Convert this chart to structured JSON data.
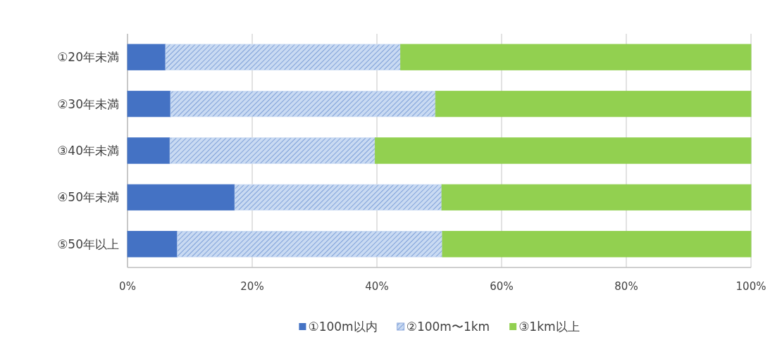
{
  "chart_data": {
    "type": "bar",
    "orientation": "horizontal",
    "stacked": true,
    "categories": [
      "①20年未満",
      "②30年未満",
      "③40年未満",
      "④50年未満",
      "⑤50年以上"
    ],
    "series": [
      {
        "name": "①100m以内",
        "color": "#4472c4",
        "values": [
          6.1,
          6.9,
          6.8,
          17.2,
          8.0
        ]
      },
      {
        "name": "②100m〜1km",
        "color": "#c9daf2",
        "values": [
          37.7,
          42.5,
          32.9,
          33.2,
          42.5
        ]
      },
      {
        "name": "③1km以上",
        "color": "#92d050",
        "values": [
          56.2,
          50.6,
          60.3,
          49.6,
          49.5
        ]
      }
    ],
    "xlim": [
      0,
      100
    ],
    "xticks": [
      {
        "value": 0,
        "label": "0%"
      },
      {
        "value": 20,
        "label": "20%"
      },
      {
        "value": 40,
        "label": "40%"
      },
      {
        "value": 60,
        "label": "60%"
      },
      {
        "value": 80,
        "label": "80%"
      },
      {
        "value": 100,
        "label": "100%"
      }
    ],
    "grid": "x",
    "legend": "bottom"
  }
}
